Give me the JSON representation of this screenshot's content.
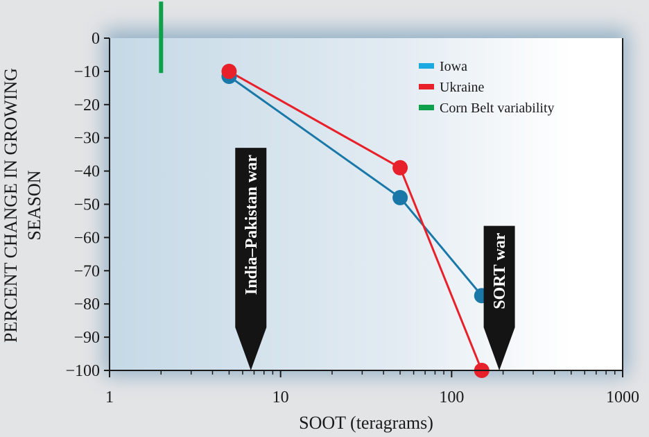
{
  "chart_data": {
    "type": "line",
    "xscale": "log",
    "xlim": [
      1,
      1000
    ],
    "ylim": [
      -100,
      0
    ],
    "xlabel": "SOOT (teragrams)",
    "ylabel_lines": [
      "PERCENT CHANGE IN GROWING",
      "SEASON"
    ],
    "xticks": [
      {
        "value": 1,
        "label": "1"
      },
      {
        "value": 10,
        "label": "10"
      },
      {
        "value": 100,
        "label": "100"
      },
      {
        "value": 1000,
        "label": "1000"
      }
    ],
    "yticks": [
      {
        "value": 0,
        "label": "0"
      },
      {
        "value": -10,
        "label": "−10"
      },
      {
        "value": -20,
        "label": "−20"
      },
      {
        "value": -30,
        "label": "−30"
      },
      {
        "value": -40,
        "label": "−40"
      },
      {
        "value": -50,
        "label": "−50"
      },
      {
        "value": -60,
        "label": "−60"
      },
      {
        "value": -70,
        "label": "−70"
      },
      {
        "value": -80,
        "label": "−80"
      },
      {
        "value": -90,
        "label": "−90"
      },
      {
        "value": -100,
        "label": "−100"
      }
    ],
    "series": [
      {
        "name": "Iowa",
        "color": "#1a78a8",
        "legend_color": "#1ca8e0",
        "x": [
          5,
          50,
          150
        ],
        "y": [
          -11.5,
          -48,
          -77.5
        ]
      },
      {
        "name": "Ukraine",
        "color": "#e8202a",
        "legend_color": "#e8202a",
        "x": [
          5,
          50,
          150
        ],
        "y": [
          -10,
          -39,
          -100
        ]
      }
    ],
    "variability": {
      "name": "Corn Belt variability",
      "color": "#0ea04a",
      "x": 2,
      "y_top": 11,
      "y_bottom": -10.5
    },
    "annotations": [
      {
        "id": "india-pakistan",
        "text": "India–Pakistan war",
        "x": 6.7,
        "y_top": -33,
        "y_bottom": -100
      },
      {
        "id": "sort",
        "text": "SORT war",
        "x": 190,
        "y_top": -56.5,
        "y_bottom": -100
      }
    ],
    "legend_placement": "top-right",
    "grid": false
  }
}
